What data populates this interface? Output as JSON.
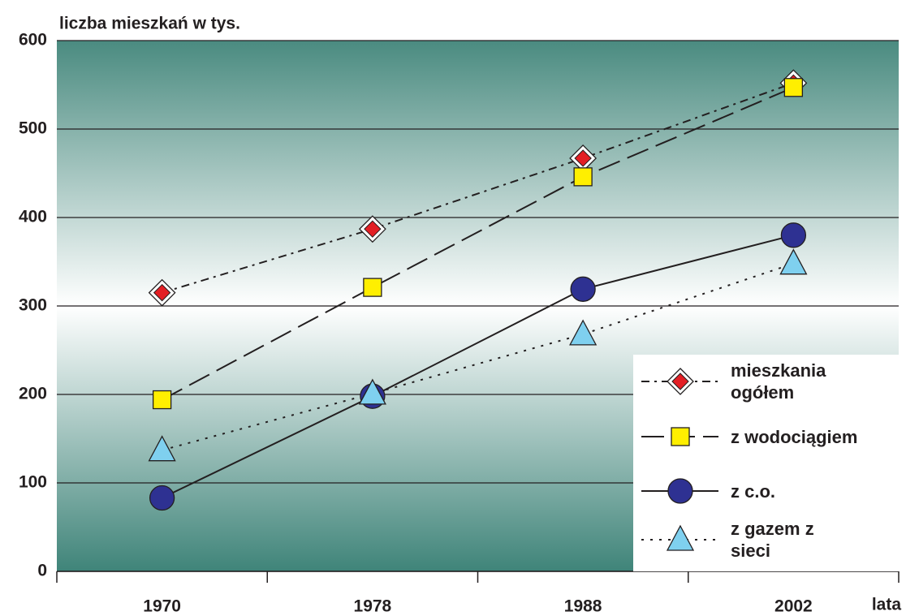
{
  "chart_data": {
    "type": "line",
    "y_label": "liczba mieszkań w tys.",
    "x_label": "lata",
    "categories": [
      "1970",
      "1978",
      "1988",
      "2002"
    ],
    "series": [
      {
        "name": "mieszkania ogółem",
        "color": "#e31e24",
        "values": [
          315,
          387,
          467,
          552
        ]
      },
      {
        "name": "z wodociągiem",
        "color": "#ffef00",
        "values": [
          194,
          321,
          446,
          547
        ]
      },
      {
        "name": "z c.o.",
        "color": "#2e3192",
        "values": [
          83,
          198,
          319,
          380
        ]
      },
      {
        "name": "z gazem z sieci",
        "color": "#7fd0ef",
        "values": [
          137,
          201,
          268,
          348
        ]
      }
    ],
    "ylim": [
      0,
      600
    ],
    "yticks": [
      0,
      100,
      200,
      300,
      400,
      500,
      600
    ],
    "grid": true
  }
}
